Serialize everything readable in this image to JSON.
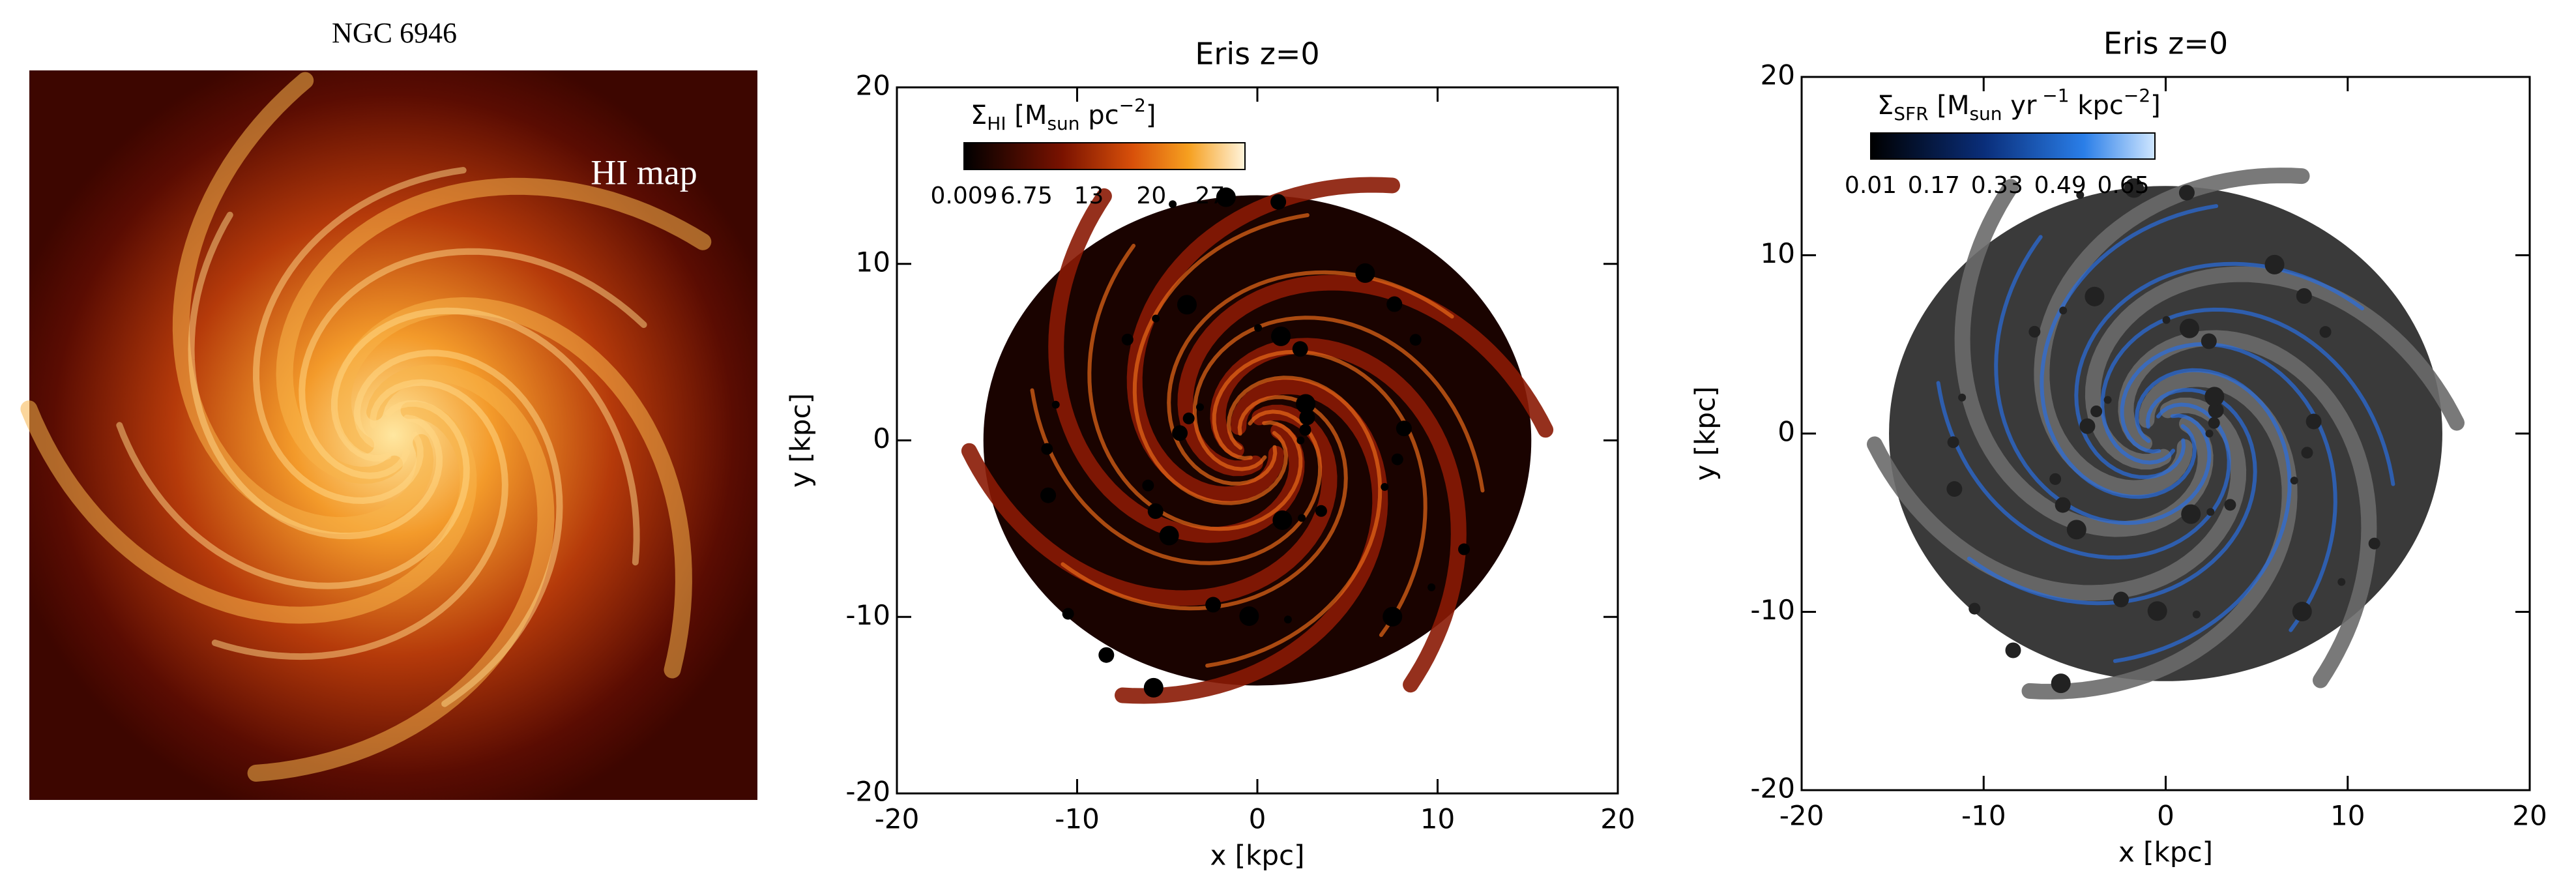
{
  "panels": [
    {
      "title": "NGC 6946",
      "annotation": "HI map"
    },
    {
      "title": "Eris z=0",
      "xlabel": "x [kpc]",
      "ylabel": "y [kpc]",
      "xlim": [
        -20,
        20
      ],
      "ylim": [
        -20,
        20
      ],
      "xticks": [
        -20,
        -10,
        0,
        10,
        20
      ],
      "yticks": [
        -20,
        -10,
        0,
        10,
        20
      ],
      "colorbar": {
        "label": [
          {
            "text": "Σ"
          },
          {
            "text": "HI",
            "sub": true
          },
          {
            "text": " [M"
          },
          {
            "text": "sun",
            "sub": true
          },
          {
            "text": " pc"
          },
          {
            "text": "−2",
            "sup": true
          },
          {
            "text": "]"
          }
        ],
        "ticks": [
          "0.009",
          "6.75",
          "13",
          "20",
          "27."
        ]
      }
    },
    {
      "title": "Eris z=0",
      "xlabel": "x [kpc]",
      "ylabel": "y [kpc]",
      "xlim": [
        -20,
        20
      ],
      "ylim": [
        -20,
        20
      ],
      "xticks": [
        -20,
        -10,
        0,
        10,
        20
      ],
      "yticks": [
        -20,
        -10,
        0,
        10,
        20
      ],
      "colorbar": {
        "label": [
          {
            "text": "Σ"
          },
          {
            "text": "SFR",
            "sub": true
          },
          {
            "text": " [M"
          },
          {
            "text": "sun",
            "sub": true
          },
          {
            "text": " yr"
          },
          {
            "text": " −1",
            "sup": true
          },
          {
            "text": " kpc"
          },
          {
            "text": "−2",
            "sup": true
          },
          {
            "text": "]"
          }
        ],
        "ticks": [
          "0.01",
          "0.17",
          "0.33",
          "0.49",
          "0.65"
        ]
      }
    }
  ]
}
